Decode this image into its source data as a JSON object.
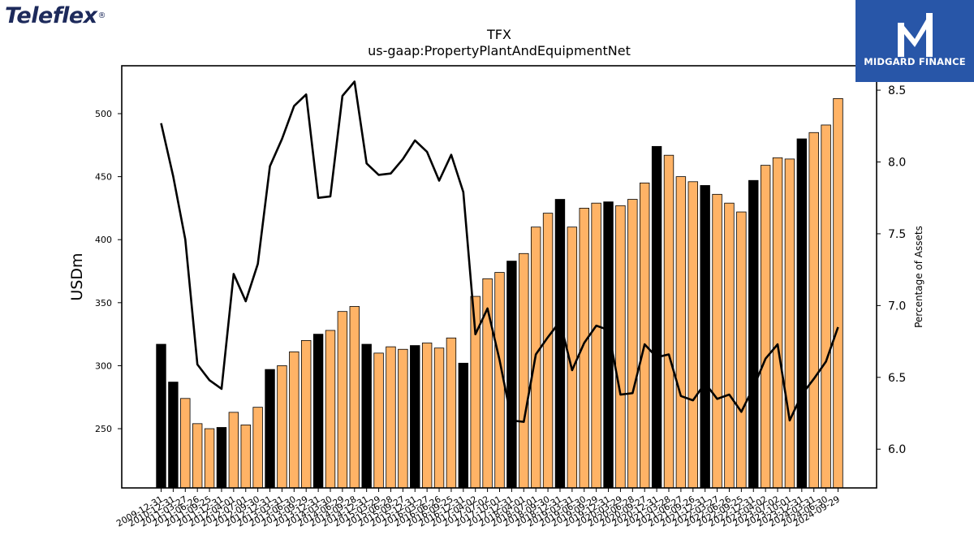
{
  "logos": {
    "left_text": "Teleflex",
    "right_text": "MIDGARD FINANCE"
  },
  "colors": {
    "bar_highlight": "#000000",
    "bar_regular": "#ffb366",
    "line": "#000000",
    "right_logo_bg": "#2856a8"
  },
  "chart_data": {
    "type": "bar",
    "title": "TFX",
    "subtitle": "us-gaap:PropertyPlantAndEquipmentNet",
    "ylabel": "USDm",
    "y2label": "Percentage of Assets",
    "ylim": [
      203,
      538
    ],
    "y2lim": [
      5.73,
      8.67
    ],
    "yticks": [
      250,
      300,
      350,
      400,
      450,
      500
    ],
    "y2ticks": [
      "6.0",
      "6.5",
      "7.0",
      "7.5",
      "8.0",
      "8.5"
    ],
    "categories": [
      "2009-12-31",
      "2010-12-31",
      "2011-03-27",
      "2011-06-26",
      "2011-09-25",
      "2011-12-31",
      "2012-04-01",
      "2012-07-01",
      "2012-09-30",
      "2012-12-31",
      "2013-03-31",
      "2013-06-30",
      "2013-09-29",
      "2013-12-31",
      "2014-03-30",
      "2014-06-29",
      "2014-09-28",
      "2014-12-31",
      "2015-03-29",
      "2015-06-28",
      "2015-09-27",
      "2015-12-31",
      "2016-03-27",
      "2016-06-26",
      "2016-09-25",
      "2016-12-31",
      "2017-04-02",
      "2017-07-02",
      "2017-10-01",
      "2017-12-31",
      "2018-04-01",
      "2018-07-01",
      "2018-09-30",
      "2018-12-31",
      "2019-03-31",
      "2019-06-30",
      "2019-09-29",
      "2019-12-31",
      "2020-03-29",
      "2020-06-28",
      "2020-09-27",
      "2020-12-31",
      "2021-03-28",
      "2021-06-27",
      "2021-09-26",
      "2021-12-31",
      "2022-03-27",
      "2022-06-26",
      "2022-09-25",
      "2022-12-31",
      "2023-04-02",
      "2023-07-02",
      "2023-10-01",
      "2023-12-31",
      "2024-03-31",
      "2024-06-30",
      "2024-09-29"
    ],
    "series": [
      {
        "type": "bar",
        "values": [
          317,
          287,
          274,
          254,
          250,
          251,
          263,
          253,
          267,
          297,
          300,
          311,
          320,
          325,
          328,
          343,
          347,
          317,
          310,
          315,
          313,
          316,
          318,
          314,
          322,
          302,
          355,
          369,
          374,
          383,
          389,
          410,
          421,
          432,
          410,
          425,
          429,
          430,
          427,
          432,
          445,
          474,
          467,
          450,
          446,
          443,
          436,
          429,
          422,
          447,
          459,
          465,
          464,
          480,
          485,
          491,
          512
        ],
        "highlight": [
          true,
          true,
          false,
          false,
          false,
          true,
          false,
          false,
          false,
          true,
          false,
          false,
          false,
          true,
          false,
          false,
          false,
          true,
          false,
          false,
          false,
          true,
          false,
          false,
          false,
          true,
          false,
          false,
          false,
          true,
          false,
          false,
          false,
          true,
          false,
          false,
          false,
          true,
          false,
          false,
          false,
          true,
          false,
          false,
          false,
          true,
          false,
          false,
          false,
          true,
          false,
          false,
          false,
          true,
          false,
          false,
          false
        ]
      },
      {
        "type": "line",
        "axis": "right",
        "values": [
          8.27,
          7.9,
          7.46,
          6.59,
          6.48,
          6.42,
          7.22,
          7.03,
          7.29,
          7.97,
          8.16,
          8.39,
          8.47,
          7.75,
          7.76,
          8.46,
          8.56,
          7.99,
          7.91,
          7.92,
          8.02,
          8.15,
          8.07,
          7.87,
          8.05,
          7.79,
          6.8,
          6.98,
          6.62,
          6.2,
          6.19,
          6.66,
          6.78,
          6.89,
          6.55,
          6.74,
          6.86,
          6.83,
          6.38,
          6.39,
          6.73,
          6.64,
          6.66,
          6.37,
          6.34,
          6.46,
          6.35,
          6.38,
          6.26,
          6.43,
          6.63,
          6.73,
          6.2,
          6.38,
          6.49,
          6.61,
          6.85
        ]
      }
    ]
  }
}
